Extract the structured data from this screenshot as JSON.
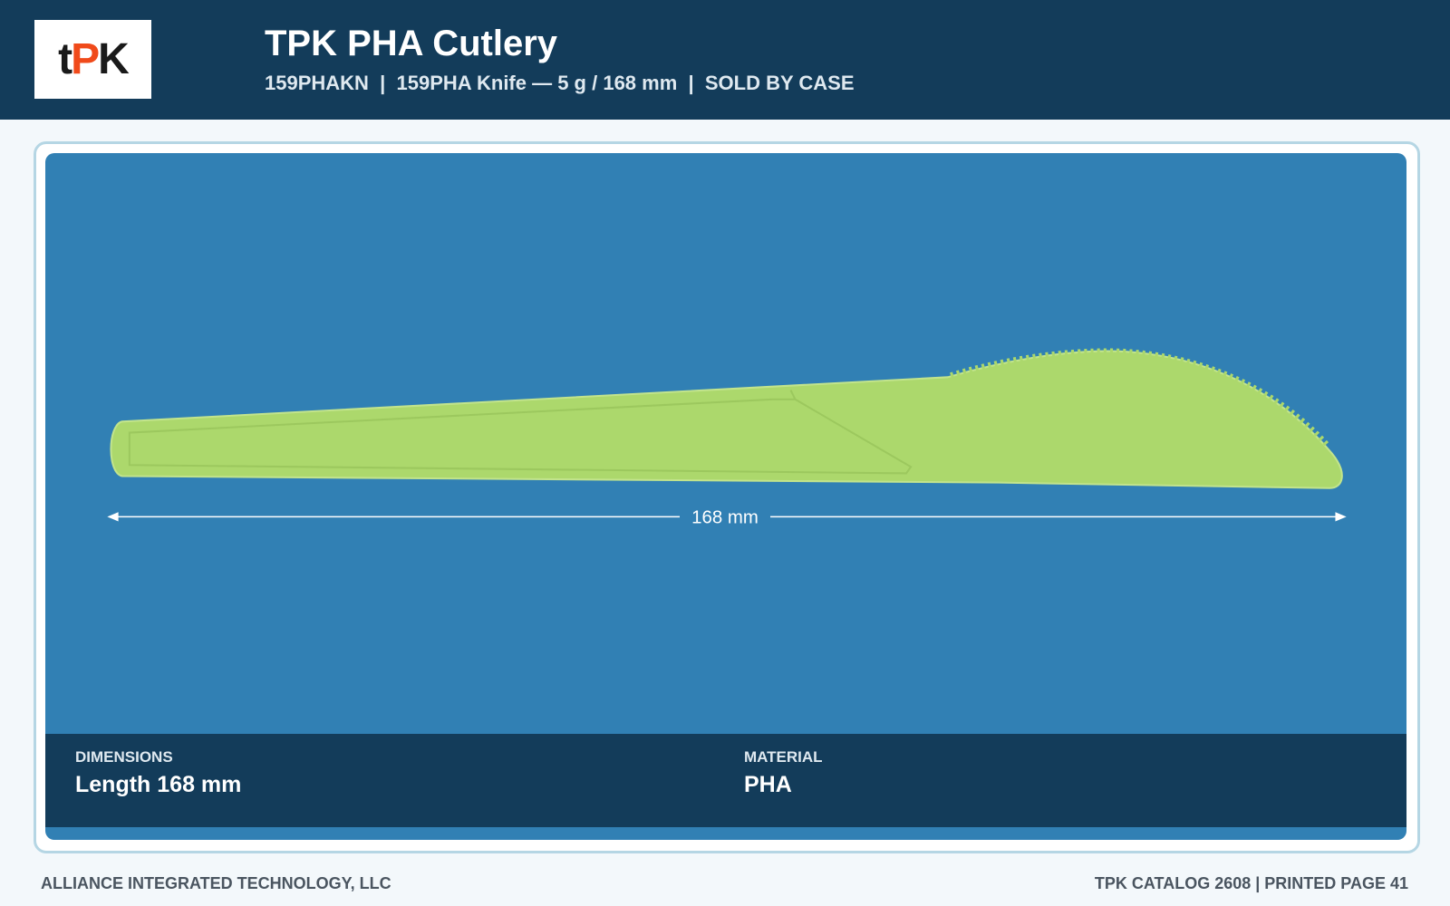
{
  "header": {
    "logo": [
      "t",
      "P",
      "K"
    ],
    "title": "TPK PHA Cutlery",
    "subtitle": "159PHAKN  |  159PHA Knife — 5 g / 168 mm  |  SOLD BY CASE"
  },
  "image": {
    "dimension_label": "168 mm"
  },
  "specs": [
    {
      "label": "DIMENSIONS",
      "value": "Length 168 mm"
    },
    {
      "label": "MATERIAL",
      "value": "PHA"
    }
  ],
  "footer": {
    "left": "ALLIANCE INTEGRATED TECHNOLOGY, LLC",
    "right": "TPK CATALOG 2608 | PRINTED PAGE 41"
  }
}
